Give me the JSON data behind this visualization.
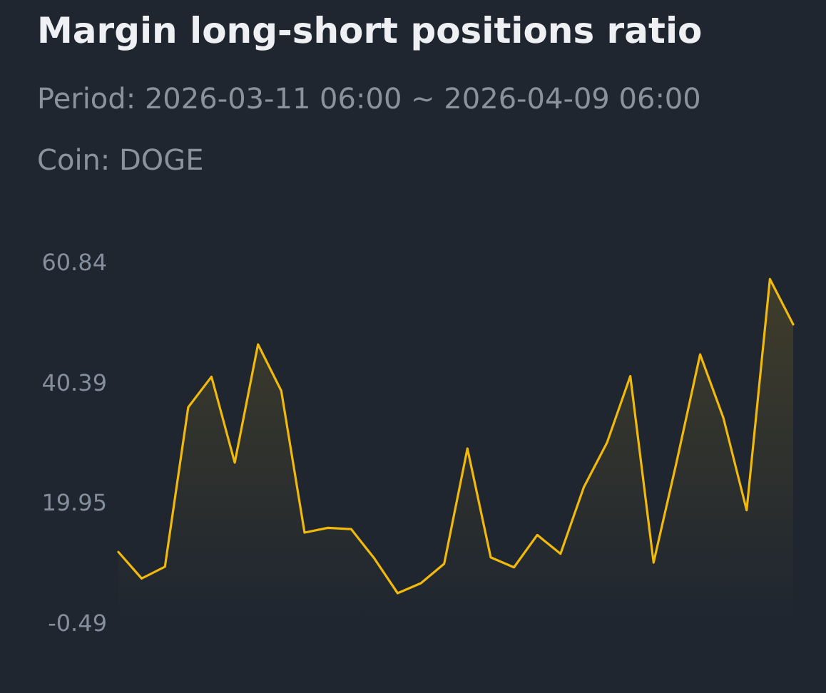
{
  "chart_data": {
    "type": "area",
    "title": "Margin long-short positions ratio",
    "subtitle": "Period: 2026-03-11 06:00 ~ 2026-04-09 06:00",
    "annotations": [
      "Coin: DOGE"
    ],
    "categories": [
      null,
      null,
      null,
      null,
      null,
      null,
      null,
      null,
      null,
      null,
      null,
      null,
      null,
      null,
      null,
      null,
      null,
      null,
      null,
      null,
      null,
      null,
      null,
      null,
      null,
      null,
      null,
      null,
      null,
      null
    ],
    "series": [
      {
        "color": "#f0b90b",
        "values": [
          11.6,
          7.1,
          9.1,
          36.2,
          41.4,
          26.8,
          46.9,
          39.0,
          14.9,
          15.7,
          15.5,
          10.5,
          4.6,
          6.3,
          9.6,
          29.2,
          10.7,
          9.0,
          14.5,
          11.3,
          22.6,
          30.2,
          41.5,
          9.8,
          27.1,
          45.2,
          34.4,
          18.7,
          58.0,
          50.3
        ]
      }
    ],
    "ylim": [
      -0.49,
      60.84
    ],
    "yticks": [
      -0.49,
      19.95,
      40.39,
      60.84
    ],
    "tick_labels": "y",
    "marker": "none",
    "line_style": "solid"
  }
}
